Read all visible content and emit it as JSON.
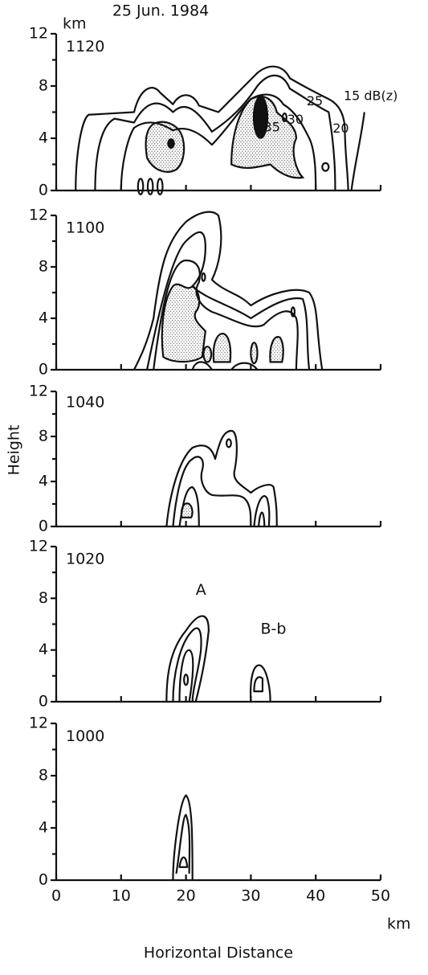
{
  "chart_data": {
    "type": "contour",
    "title": "25 Jun. 1984",
    "y_unit": "km",
    "x_unit": "km",
    "xlabel": "Horizontal Distance",
    "ylabel": "Height",
    "xlim": [
      0,
      50
    ],
    "xticks": [
      0,
      10,
      20,
      30,
      40,
      50
    ],
    "ylim": [
      0,
      12
    ],
    "yticks": [
      0,
      4,
      8,
      12
    ],
    "panels": [
      {
        "label": "1120",
        "annotations": [
          "15 dB(z)",
          "20",
          "25",
          "30",
          "35"
        ]
      },
      {
        "label": "1100",
        "annotations": []
      },
      {
        "label": "1040",
        "annotations": []
      },
      {
        "label": "1020",
        "annotations": [
          "A",
          "B-b"
        ]
      },
      {
        "label": "1000",
        "annotations": []
      }
    ]
  }
}
